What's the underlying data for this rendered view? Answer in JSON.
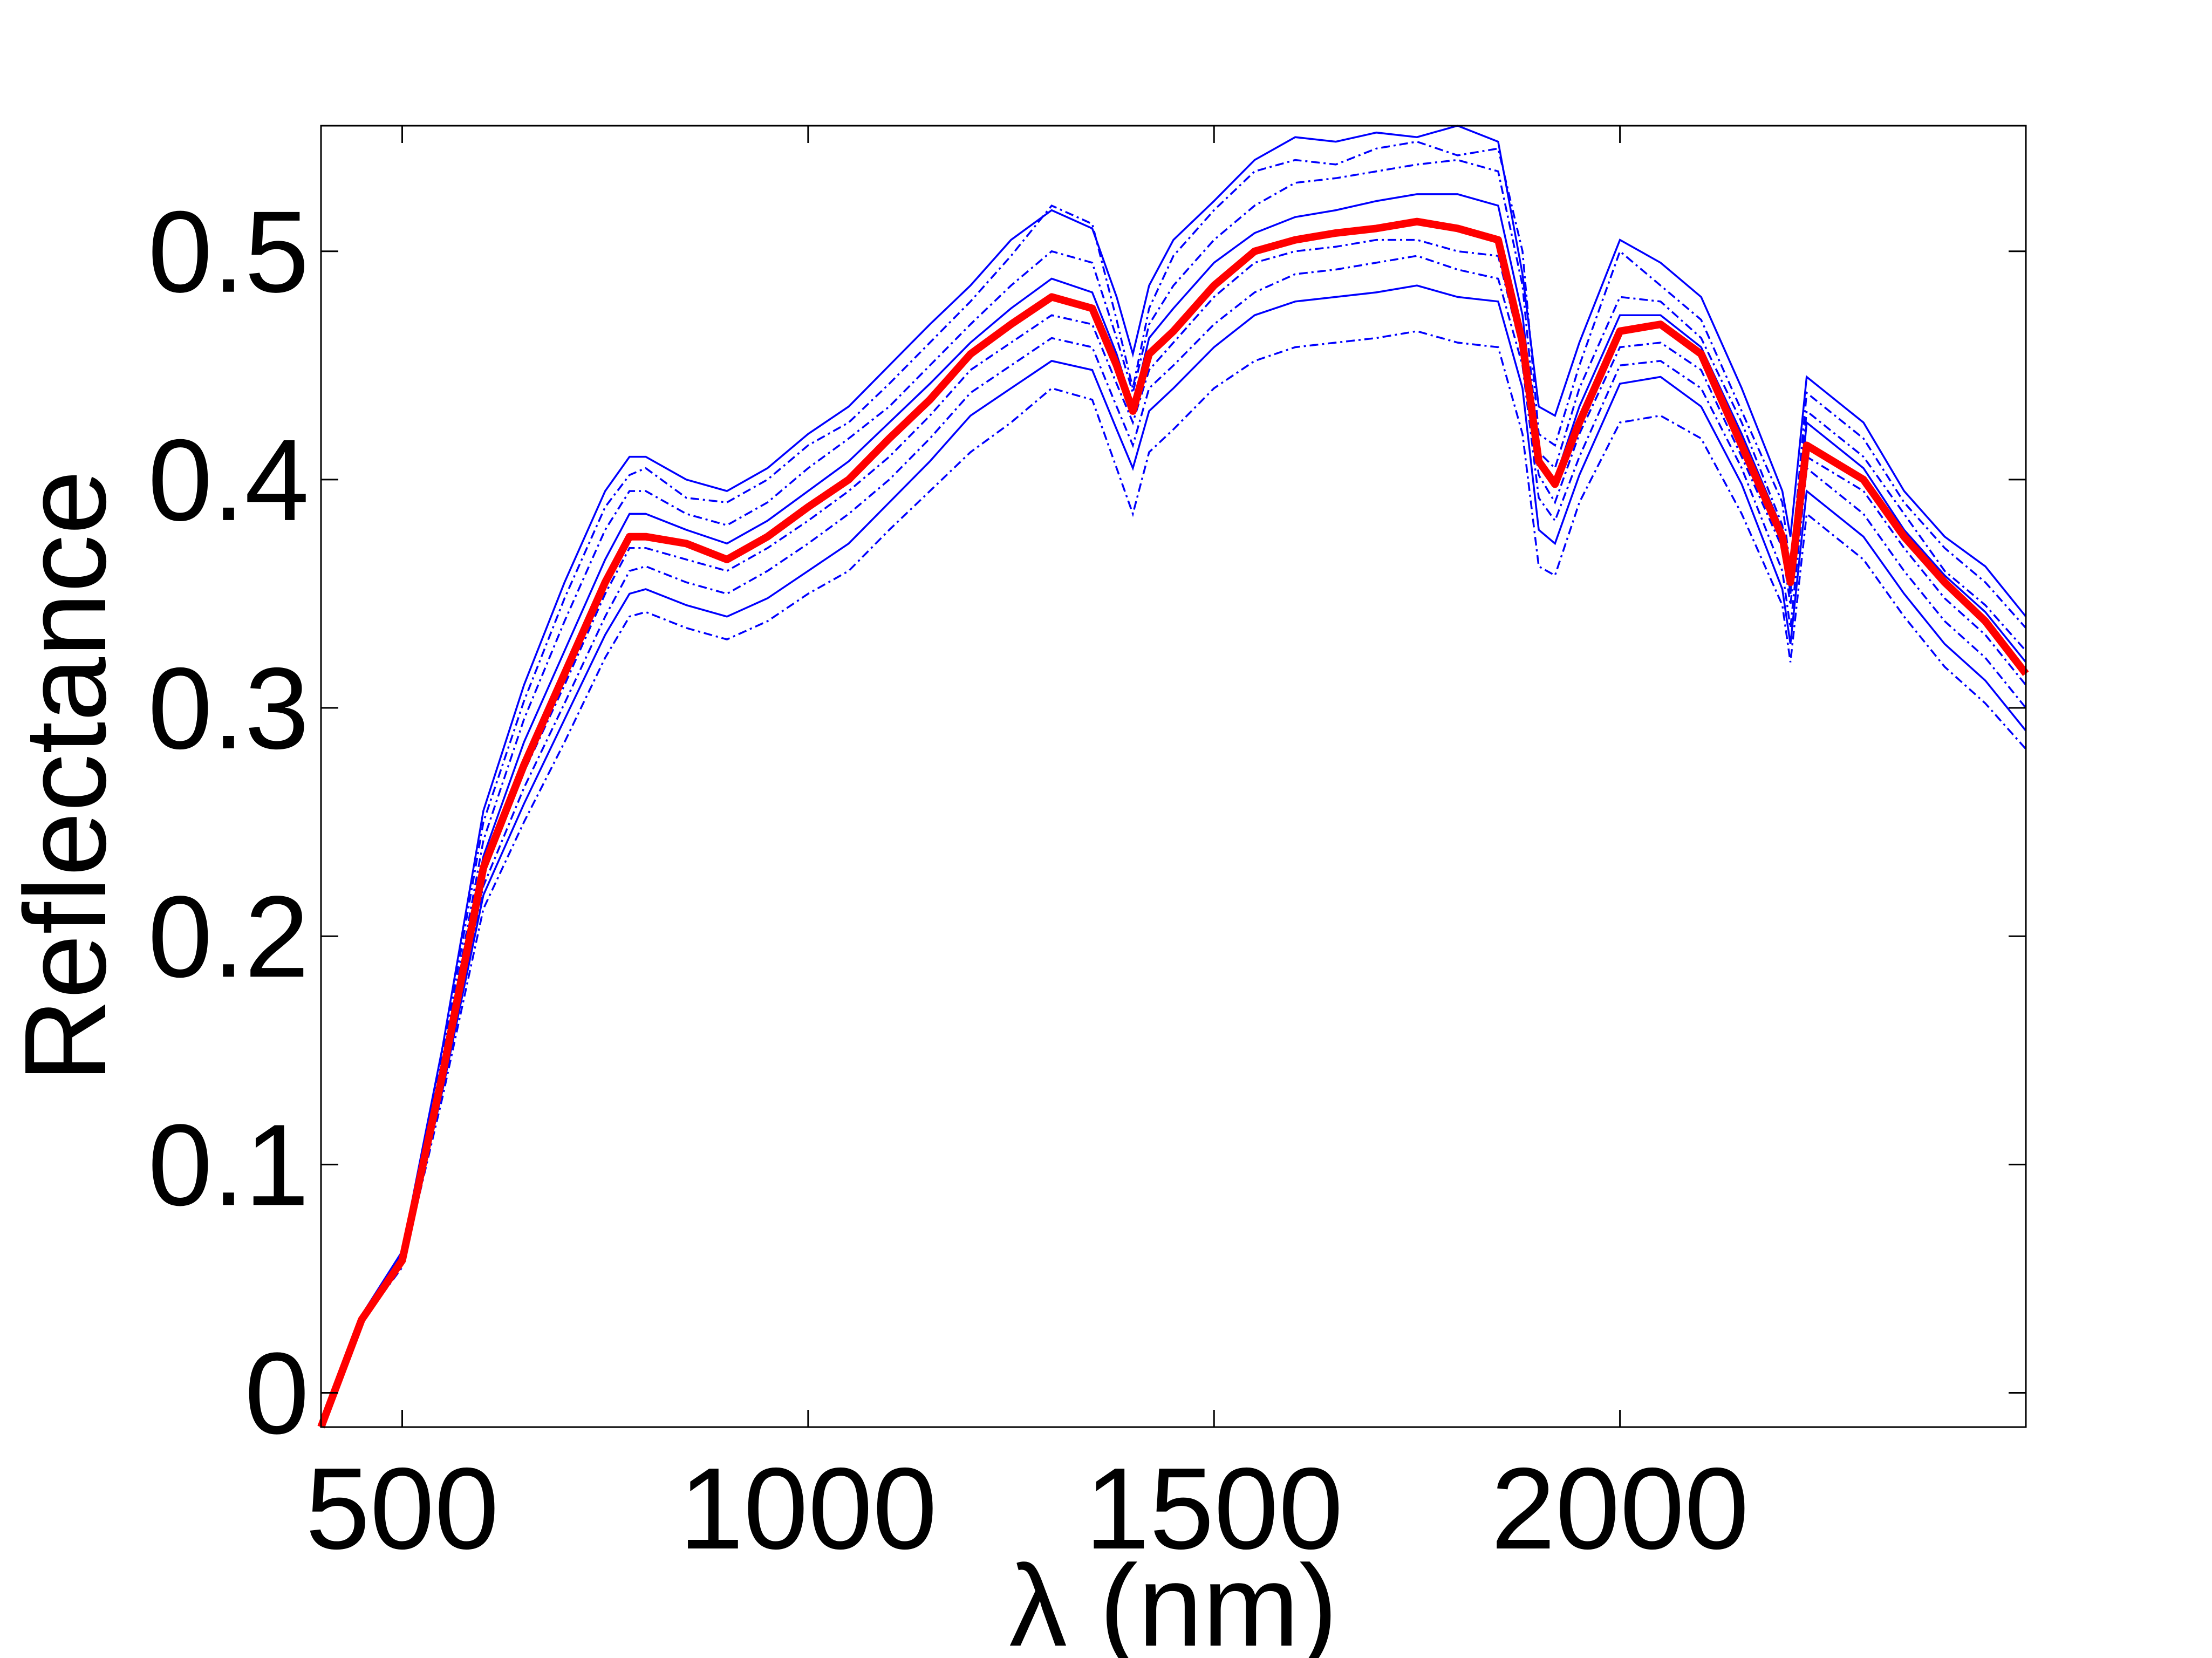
{
  "chart_data": {
    "type": "line",
    "title": "",
    "xlabel": "λ (nm)",
    "ylabel": "Reflectance",
    "xlim": [
      400,
      2500
    ],
    "ylim": [
      -0.015,
      0.555
    ],
    "xticks": [
      500,
      1000,
      1500,
      2000
    ],
    "xtick_labels": [
      "500",
      "1000",
      "1500",
      "2000"
    ],
    "yticks": [
      0,
      0.1,
      0.2,
      0.3,
      0.4,
      0.5
    ],
    "ytick_labels": [
      "0",
      "0.1",
      "0.2",
      "0.3",
      "0.4",
      "0.5"
    ],
    "grid": false,
    "legend": "none",
    "colors": {
      "mean": "#ff0000",
      "samples": "#0000ff",
      "axes": "#000000"
    },
    "x": [
      400,
      450,
      500,
      550,
      600,
      650,
      700,
      750,
      780,
      800,
      850,
      900,
      950,
      1000,
      1050,
      1100,
      1150,
      1200,
      1250,
      1300,
      1350,
      1380,
      1400,
      1420,
      1450,
      1500,
      1550,
      1600,
      1650,
      1700,
      1750,
      1800,
      1850,
      1880,
      1900,
      1920,
      1950,
      2000,
      2050,
      2100,
      2150,
      2200,
      2210,
      2230,
      2300,
      2350,
      2400,
      2450,
      2500
    ],
    "mean": [
      -0.015,
      0.032,
      0.058,
      0.14,
      0.23,
      0.275,
      0.315,
      0.355,
      0.375,
      0.375,
      0.372,
      0.365,
      0.375,
      0.388,
      0.4,
      0.418,
      0.435,
      0.455,
      0.468,
      0.48,
      0.475,
      0.45,
      0.43,
      0.455,
      0.465,
      0.485,
      0.5,
      0.505,
      0.508,
      0.51,
      0.513,
      0.51,
      0.505,
      0.46,
      0.408,
      0.398,
      0.425,
      0.465,
      0.468,
      0.455,
      0.415,
      0.375,
      0.355,
      0.415,
      0.4,
      0.375,
      0.355,
      0.338,
      0.315
    ],
    "series": [
      {
        "values": [
          -0.015,
          0.034,
          0.062,
          0.152,
          0.255,
          0.31,
          0.355,
          0.395,
          0.41,
          0.41,
          0.4,
          0.395,
          0.405,
          0.42,
          0.432,
          0.45,
          0.468,
          0.485,
          0.505,
          0.518,
          0.51,
          0.48,
          0.455,
          0.485,
          0.505,
          0.522,
          0.54,
          0.55,
          0.548,
          0.552,
          0.55,
          0.555,
          0.548,
          0.49,
          0.432,
          0.428,
          0.46,
          0.505,
          0.495,
          0.48,
          0.44,
          0.395,
          0.375,
          0.445,
          0.425,
          0.395,
          0.375,
          0.362,
          0.34
        ]
      },
      {
        "values": [
          -0.015,
          0.034,
          0.061,
          0.148,
          0.25,
          0.303,
          0.348,
          0.388,
          0.402,
          0.405,
          0.392,
          0.39,
          0.4,
          0.415,
          0.425,
          0.442,
          0.46,
          0.478,
          0.498,
          0.52,
          0.512,
          0.47,
          0.44,
          0.475,
          0.498,
          0.518,
          0.535,
          0.54,
          0.538,
          0.545,
          0.548,
          0.542,
          0.545,
          0.5,
          0.42,
          0.415,
          0.45,
          0.5,
          0.485,
          0.47,
          0.43,
          0.39,
          0.36,
          0.438,
          0.418,
          0.39,
          0.37,
          0.355,
          0.335
        ]
      },
      {
        "values": [
          -0.015,
          0.033,
          0.06,
          0.145,
          0.242,
          0.295,
          0.338,
          0.378,
          0.395,
          0.395,
          0.385,
          0.38,
          0.39,
          0.405,
          0.418,
          0.432,
          0.45,
          0.468,
          0.485,
          0.5,
          0.495,
          0.462,
          0.438,
          0.468,
          0.485,
          0.505,
          0.52,
          0.53,
          0.532,
          0.535,
          0.538,
          0.54,
          0.535,
          0.485,
          0.412,
          0.405,
          0.44,
          0.48,
          0.478,
          0.462,
          0.425,
          0.38,
          0.355,
          0.43,
          0.41,
          0.385,
          0.36,
          0.345,
          0.325
        ]
      },
      {
        "values": [
          -0.015,
          0.033,
          0.059,
          0.142,
          0.235,
          0.285,
          0.325,
          0.365,
          0.385,
          0.385,
          0.378,
          0.372,
          0.382,
          0.395,
          0.408,
          0.425,
          0.442,
          0.46,
          0.475,
          0.488,
          0.482,
          0.455,
          0.432,
          0.462,
          0.475,
          0.495,
          0.508,
          0.515,
          0.518,
          0.522,
          0.525,
          0.525,
          0.52,
          0.472,
          0.41,
          0.4,
          0.432,
          0.472,
          0.472,
          0.458,
          0.42,
          0.378,
          0.35,
          0.425,
          0.405,
          0.378,
          0.358,
          0.342,
          0.32
        ]
      },
      {
        "values": [
          -0.015,
          0.032,
          0.058,
          0.139,
          0.228,
          0.272,
          0.31,
          0.35,
          0.37,
          0.37,
          0.365,
          0.36,
          0.37,
          0.382,
          0.395,
          0.41,
          0.428,
          0.448,
          0.46,
          0.472,
          0.468,
          0.442,
          0.425,
          0.448,
          0.46,
          0.48,
          0.495,
          0.5,
          0.502,
          0.505,
          0.505,
          0.5,
          0.498,
          0.455,
          0.402,
          0.39,
          0.42,
          0.458,
          0.46,
          0.448,
          0.41,
          0.37,
          0.345,
          0.41,
          0.395,
          0.37,
          0.348,
          0.332,
          0.31
        ]
      },
      {
        "values": [
          -0.015,
          0.032,
          0.057,
          0.136,
          0.222,
          0.265,
          0.302,
          0.34,
          0.36,
          0.362,
          0.355,
          0.35,
          0.36,
          0.372,
          0.385,
          0.4,
          0.418,
          0.438,
          0.45,
          0.462,
          0.458,
          0.432,
          0.415,
          0.44,
          0.45,
          0.468,
          0.482,
          0.49,
          0.492,
          0.495,
          0.498,
          0.492,
          0.488,
          0.45,
          0.392,
          0.382,
          0.41,
          0.45,
          0.452,
          0.44,
          0.405,
          0.36,
          0.335,
          0.405,
          0.385,
          0.36,
          0.338,
          0.322,
          0.3
        ]
      },
      {
        "values": [
          -0.015,
          0.031,
          0.056,
          0.133,
          0.218,
          0.258,
          0.295,
          0.332,
          0.35,
          0.352,
          0.345,
          0.34,
          0.348,
          0.36,
          0.372,
          0.39,
          0.408,
          0.428,
          0.44,
          0.452,
          0.448,
          0.422,
          0.405,
          0.43,
          0.44,
          0.458,
          0.472,
          0.478,
          0.48,
          0.482,
          0.485,
          0.48,
          0.478,
          0.44,
          0.378,
          0.372,
          0.402,
          0.442,
          0.445,
          0.432,
          0.398,
          0.352,
          0.328,
          0.395,
          0.375,
          0.35,
          0.328,
          0.312,
          0.29
        ]
      },
      {
        "values": [
          -0.015,
          0.031,
          0.055,
          0.13,
          0.212,
          0.25,
          0.285,
          0.322,
          0.34,
          0.342,
          0.335,
          0.33,
          0.338,
          0.35,
          0.36,
          0.378,
          0.395,
          0.412,
          0.425,
          0.44,
          0.435,
          0.405,
          0.385,
          0.412,
          0.422,
          0.44,
          0.452,
          0.458,
          0.46,
          0.462,
          0.465,
          0.46,
          0.458,
          0.42,
          0.362,
          0.358,
          0.39,
          0.425,
          0.428,
          0.418,
          0.385,
          0.345,
          0.32,
          0.385,
          0.365,
          0.34,
          0.318,
          0.302,
          0.282
        ]
      }
    ]
  }
}
